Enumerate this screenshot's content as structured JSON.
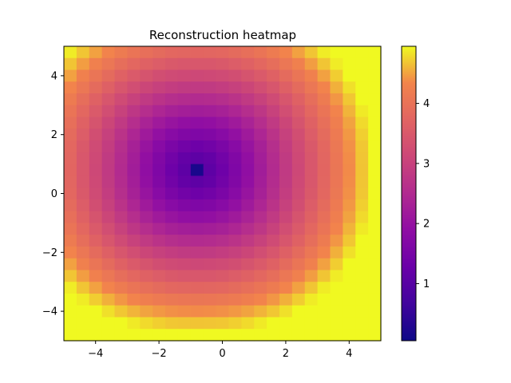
{
  "chart_data": {
    "type": "heatmap",
    "title": "Reconstruction heatmap",
    "xlabel": "",
    "ylabel": "",
    "xlim": [
      -5,
      5
    ],
    "ylim": [
      -5,
      5
    ],
    "x_ticks": [
      -4,
      -2,
      0,
      2,
      4
    ],
    "x_tick_labels": [
      "−4",
      "−2",
      "0",
      "2",
      "4"
    ],
    "y_ticks": [
      -4,
      -2,
      0,
      2,
      4
    ],
    "y_tick_labels": [
      "−4",
      "−2",
      "0",
      "2",
      "4"
    ],
    "grid": false,
    "colormap": "plasma",
    "colorbar": {
      "range": [
        0.05,
        4.95
      ],
      "ticks": [
        1,
        2,
        3,
        4
      ],
      "tick_labels": [
        "1",
        "2",
        "3",
        "4"
      ]
    },
    "grid_cells": 25,
    "cell_width": 0.4,
    "values": [
      [
        4.88,
        4.68,
        4.49,
        4.32,
        4.17,
        4.04,
        3.93,
        3.85,
        3.79,
        3.76,
        3.75,
        3.76,
        3.79,
        3.85,
        3.93,
        4.04,
        4.17,
        4.32,
        4.49,
        4.68,
        4.88,
        4.95,
        4.95,
        4.95,
        4.95
      ],
      [
        4.68,
        4.47,
        4.27,
        4.08,
        3.92,
        3.78,
        3.66,
        3.57,
        3.5,
        3.46,
        3.45,
        3.46,
        3.5,
        3.57,
        3.66,
        3.78,
        3.92,
        4.08,
        4.27,
        4.47,
        4.68,
        4.88,
        4.95,
        4.95,
        4.95
      ],
      [
        4.49,
        4.27,
        4.05,
        3.85,
        3.67,
        3.51,
        3.38,
        3.27,
        3.2,
        3.16,
        3.14,
        3.16,
        3.2,
        3.27,
        3.38,
        3.51,
        3.67,
        3.85,
        4.05,
        4.27,
        4.49,
        4.72,
        4.95,
        4.95,
        4.95
      ],
      [
        4.32,
        4.08,
        3.85,
        3.63,
        3.42,
        3.25,
        3.1,
        2.98,
        2.9,
        2.85,
        2.83,
        2.85,
        2.9,
        2.98,
        3.1,
        3.25,
        3.42,
        3.63,
        3.85,
        4.08,
        4.32,
        4.57,
        4.82,
        4.95,
        4.95
      ],
      [
        4.17,
        3.92,
        3.67,
        3.42,
        3.2,
        3.0,
        2.83,
        2.7,
        2.6,
        2.54,
        2.52,
        2.54,
        2.6,
        2.7,
        2.83,
        3.0,
        3.2,
        3.42,
        3.67,
        3.92,
        4.17,
        4.43,
        4.69,
        4.95,
        4.95
      ],
      [
        4.04,
        3.78,
        3.51,
        3.25,
        3.0,
        2.77,
        2.58,
        2.42,
        2.31,
        2.24,
        2.22,
        2.24,
        2.31,
        2.42,
        2.58,
        2.77,
        3.0,
        3.25,
        3.51,
        3.78,
        4.04,
        4.32,
        4.59,
        4.87,
        4.95
      ],
      [
        3.93,
        3.66,
        3.38,
        3.1,
        2.83,
        2.58,
        2.35,
        2.17,
        2.03,
        1.94,
        1.91,
        1.94,
        2.03,
        2.17,
        2.35,
        2.58,
        2.83,
        3.1,
        3.38,
        3.66,
        3.93,
        4.22,
        4.5,
        4.79,
        4.95
      ],
      [
        3.85,
        3.57,
        3.27,
        2.98,
        2.7,
        2.42,
        2.17,
        1.95,
        1.77,
        1.66,
        1.62,
        1.66,
        1.77,
        1.95,
        2.17,
        2.42,
        2.7,
        2.98,
        3.27,
        3.57,
        3.85,
        4.15,
        4.44,
        4.73,
        4.95
      ],
      [
        3.79,
        3.5,
        3.2,
        2.9,
        2.6,
        2.31,
        2.03,
        1.77,
        1.55,
        1.4,
        1.34,
        1.4,
        1.55,
        1.77,
        2.03,
        2.31,
        2.6,
        2.9,
        3.2,
        3.5,
        3.79,
        4.1,
        4.4,
        4.69,
        4.95
      ],
      [
        3.76,
        3.46,
        3.16,
        2.85,
        2.54,
        2.24,
        1.94,
        1.66,
        1.4,
        1.19,
        1.1,
        1.19,
        1.4,
        1.66,
        1.94,
        2.24,
        2.54,
        2.85,
        3.16,
        3.46,
        3.76,
        4.07,
        4.38,
        4.68,
        4.95
      ],
      [
        3.75,
        3.45,
        3.14,
        2.83,
        2.52,
        2.22,
        1.91,
        1.62,
        1.34,
        1.1,
        0.2,
        1.1,
        1.34,
        1.62,
        1.91,
        2.22,
        2.52,
        2.83,
        3.14,
        3.45,
        3.75,
        4.06,
        4.37,
        4.67,
        4.95
      ],
      [
        3.76,
        3.46,
        3.16,
        2.85,
        2.54,
        2.24,
        1.94,
        1.66,
        1.4,
        1.19,
        1.1,
        1.19,
        1.4,
        1.66,
        1.94,
        2.24,
        2.54,
        2.85,
        3.16,
        3.46,
        3.76,
        4.07,
        4.38,
        4.68,
        4.95
      ],
      [
        3.79,
        3.5,
        3.2,
        2.9,
        2.6,
        2.31,
        2.03,
        1.77,
        1.55,
        1.4,
        1.34,
        1.4,
        1.55,
        1.77,
        2.03,
        2.31,
        2.6,
        2.9,
        3.2,
        3.5,
        3.79,
        4.1,
        4.4,
        4.69,
        4.95
      ],
      [
        3.85,
        3.57,
        3.27,
        2.98,
        2.7,
        2.42,
        2.17,
        1.95,
        1.77,
        1.66,
        1.62,
        1.66,
        1.77,
        1.95,
        2.17,
        2.42,
        2.7,
        2.98,
        3.27,
        3.57,
        3.85,
        4.15,
        4.44,
        4.73,
        4.95
      ],
      [
        3.93,
        3.66,
        3.38,
        3.1,
        2.83,
        2.58,
        2.35,
        2.17,
        2.03,
        1.94,
        1.91,
        1.94,
        2.03,
        2.17,
        2.35,
        2.58,
        2.83,
        3.1,
        3.38,
        3.66,
        3.93,
        4.22,
        4.5,
        4.79,
        4.95
      ],
      [
        4.04,
        3.78,
        3.51,
        3.25,
        3.0,
        2.77,
        2.58,
        2.42,
        2.31,
        2.24,
        2.22,
        2.24,
        2.31,
        2.42,
        2.58,
        2.77,
        3.0,
        3.25,
        3.51,
        3.78,
        4.04,
        4.32,
        4.59,
        4.87,
        4.95
      ],
      [
        4.17,
        3.92,
        3.67,
        3.42,
        3.2,
        3.0,
        2.83,
        2.7,
        2.6,
        2.54,
        2.52,
        2.54,
        2.6,
        2.7,
        2.83,
        3.0,
        3.2,
        3.42,
        3.67,
        3.92,
        4.17,
        4.43,
        4.69,
        4.95,
        4.95
      ],
      [
        4.32,
        4.08,
        3.85,
        3.63,
        3.42,
        3.25,
        3.1,
        2.98,
        2.9,
        2.85,
        2.83,
        2.85,
        2.9,
        2.98,
        3.1,
        3.25,
        3.42,
        3.63,
        3.85,
        4.08,
        4.32,
        4.57,
        4.82,
        4.95,
        4.95
      ],
      [
        4.49,
        4.27,
        4.05,
        3.85,
        3.67,
        3.51,
        3.38,
        3.27,
        3.2,
        3.16,
        3.14,
        3.16,
        3.2,
        3.27,
        3.38,
        3.51,
        3.67,
        3.85,
        4.05,
        4.27,
        4.49,
        4.72,
        4.95,
        4.95,
        4.95
      ],
      [
        4.68,
        4.47,
        4.27,
        4.08,
        3.92,
        3.78,
        3.66,
        3.57,
        3.5,
        3.46,
        3.45,
        3.46,
        3.5,
        3.57,
        3.66,
        3.78,
        3.92,
        4.08,
        4.27,
        4.47,
        4.68,
        4.88,
        4.95,
        4.95,
        4.95
      ],
      [
        4.88,
        4.68,
        4.49,
        4.32,
        4.17,
        4.04,
        3.93,
        3.85,
        3.79,
        3.76,
        3.75,
        3.76,
        3.79,
        3.85,
        3.93,
        4.04,
        4.17,
        4.32,
        4.49,
        4.68,
        4.88,
        4.95,
        4.95,
        4.95,
        4.95
      ],
      [
        4.95,
        4.88,
        4.72,
        4.57,
        4.43,
        4.32,
        4.22,
        4.15,
        4.1,
        4.07,
        4.06,
        4.07,
        4.1,
        4.15,
        4.22,
        4.32,
        4.43,
        4.57,
        4.72,
        4.88,
        4.95,
        4.95,
        4.95,
        4.95,
        4.95
      ],
      [
        4.95,
        4.95,
        4.95,
        4.82,
        4.69,
        4.59,
        4.5,
        4.44,
        4.4,
        4.38,
        4.37,
        4.38,
        4.4,
        4.44,
        4.5,
        4.59,
        4.69,
        4.82,
        4.95,
        4.95,
        4.95,
        4.95,
        4.95,
        4.95,
        4.95
      ],
      [
        4.95,
        4.95,
        4.95,
        4.95,
        4.95,
        4.87,
        4.79,
        4.73,
        4.69,
        4.68,
        4.67,
        4.68,
        4.69,
        4.73,
        4.79,
        4.87,
        4.95,
        4.95,
        4.95,
        4.95,
        4.95,
        4.95,
        4.95,
        4.95,
        4.95
      ],
      [
        4.95,
        4.95,
        4.95,
        4.95,
        4.95,
        4.95,
        4.95,
        4.95,
        4.95,
        4.95,
        4.95,
        4.95,
        4.95,
        4.95,
        4.95,
        4.95,
        4.95,
        4.95,
        4.95,
        4.95,
        4.95,
        4.95,
        4.95,
        4.95,
        4.95
      ]
    ]
  }
}
